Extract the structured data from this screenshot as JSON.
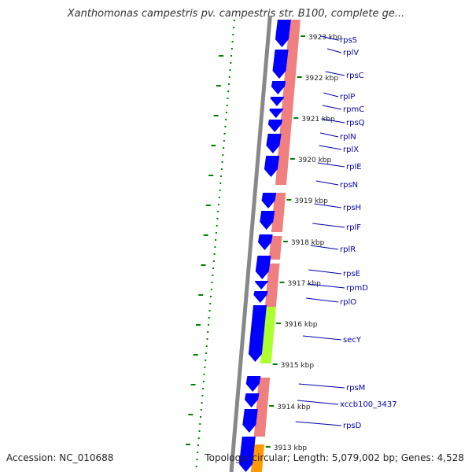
{
  "title": "Xanthomonas campestris pv. campestris str. B100, complete ge...",
  "footer": {
    "accession": "Accession: NC_010688",
    "summary": "Topology: circular; Length: 5,079,002 bp; Genes: 4,528"
  },
  "ticks": [
    "3923 kbp",
    "3922 kbp",
    "3921 kbp",
    "3920 kbp",
    "3919 kbp",
    "3918 kbp",
    "3917 kbp",
    "3916 kbp",
    "3915 kbp",
    "3914 kbp",
    "3913 kbp"
  ],
  "genes": [
    "rpsS",
    "rplV",
    "rpsC",
    "rplP",
    "rpmC",
    "rpsQ",
    "rplN",
    "rplX",
    "rplE",
    "rpsN",
    "rpsH",
    "rplF",
    "rplR",
    "rpsE",
    "rpmD",
    "rplO",
    "secY",
    "rpsM",
    "xccb100_3437",
    "rpsD"
  ],
  "colors": {
    "cds": "#0000ff",
    "rna": "#f08080",
    "secy_highlight": "#adff2f",
    "orange": "#ff9900",
    "gc_skew": "#008000",
    "backbone": "#888888"
  }
}
